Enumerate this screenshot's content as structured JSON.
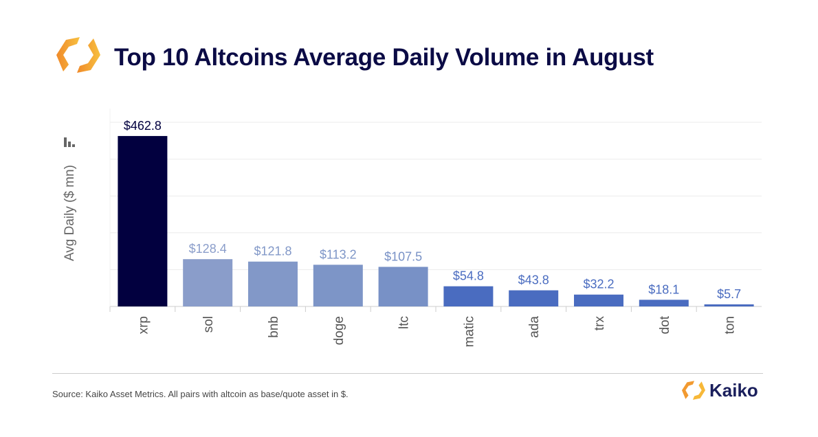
{
  "header": {
    "title": "Top 10 Altcoins Average Daily Volume in August"
  },
  "footer": {
    "source": "Source: Kaiko Asset Metrics. All pairs with altcoin as base/quote asset in $.",
    "brand": "Kaiko"
  },
  "chart_data": {
    "type": "bar",
    "title": "Top 10 Altcoins Average Daily Volume in August",
    "xlabel": "",
    "ylabel": "Avg Daily ($ mn)",
    "ylim": [
      0,
      500
    ],
    "grid": true,
    "gridlines": [
      0,
      100,
      200,
      300,
      400,
      500
    ],
    "categories": [
      "xrp",
      "sol",
      "bnb",
      "doge",
      "ltc",
      "matic",
      "ada",
      "trx",
      "dot",
      "ton"
    ],
    "values": [
      462.8,
      128.4,
      121.8,
      113.2,
      107.5,
      54.8,
      43.8,
      32.2,
      18.1,
      5.7
    ],
    "labels": [
      "$462.8",
      "$128.4",
      "$121.8",
      "$113.2",
      "$107.5",
      "$54.8",
      "$43.8",
      "$32.2",
      "$18.1",
      "$5.7"
    ],
    "colors": [
      "#02003f",
      "#8a9dca",
      "#8298c8",
      "#7d95c7",
      "#7891c6",
      "#4a6cc0",
      "#4a6cc0",
      "#4a6cc0",
      "#4a6cc0",
      "#4a6cc0"
    ]
  }
}
